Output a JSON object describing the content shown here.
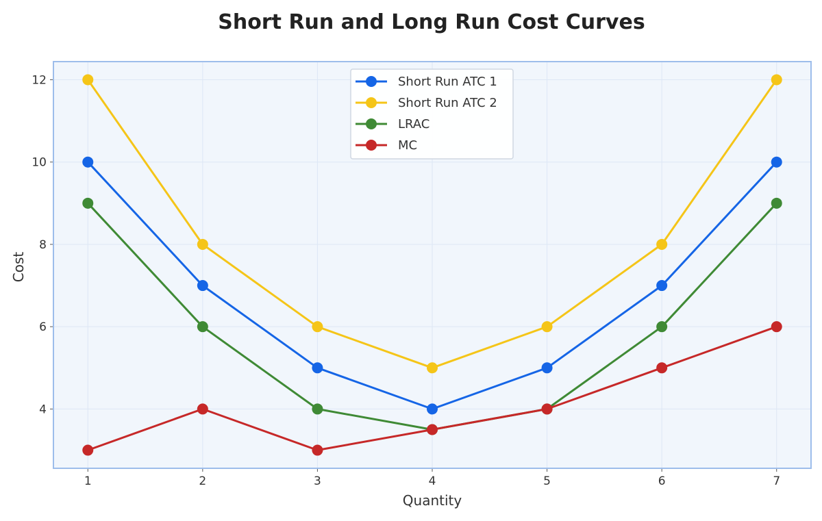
{
  "chart_data": {
    "type": "line",
    "title": "Short Run and Long Run Cost Curves",
    "xlabel": "Quantity",
    "ylabel": "Cost",
    "x": [
      1,
      2,
      3,
      4,
      5,
      6,
      7
    ],
    "xlim": [
      0.7,
      7.3
    ],
    "ylim": [
      2.56,
      12.44
    ],
    "yticks": [
      4,
      6,
      8,
      10,
      12
    ],
    "grid": true,
    "legend_position": "top-center",
    "series": [
      {
        "name": "Short Run ATC 1",
        "color": "#1565e6",
        "values": [
          10,
          7,
          5,
          4,
          5,
          7,
          10
        ]
      },
      {
        "name": "Short Run ATC 2",
        "color": "#f5c518",
        "values": [
          12,
          8,
          6,
          5,
          6,
          8,
          12
        ]
      },
      {
        "name": "LRAC",
        "color": "#3f8a35",
        "values": [
          9,
          6,
          4,
          3.5,
          4,
          6,
          9
        ]
      },
      {
        "name": "MC",
        "color": "#c62828",
        "values": [
          3,
          4,
          3,
          3.5,
          4,
          5,
          6
        ]
      }
    ],
    "colors": {
      "plot_background": "#f1f6fc",
      "plot_border": "#9dbdeb",
      "grid": "#dde7f5"
    }
  }
}
